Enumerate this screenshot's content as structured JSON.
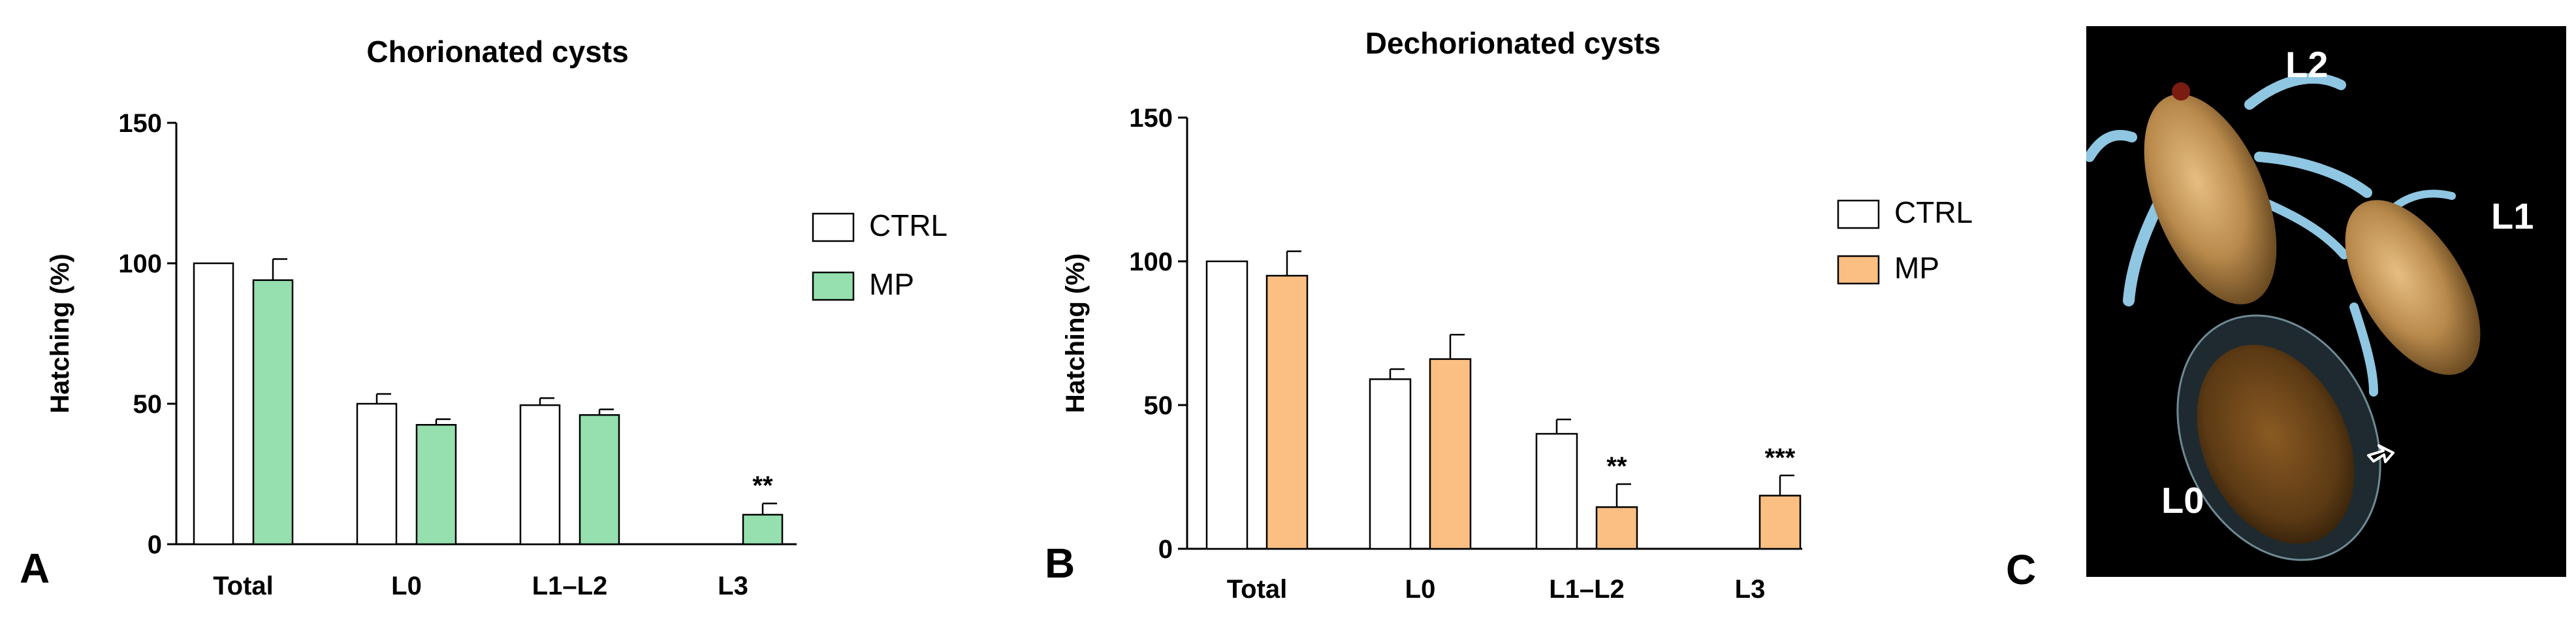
{
  "panel_letters": {
    "a": "A",
    "b": "B",
    "c": "C"
  },
  "chart_data": [
    {
      "type": "bar",
      "title": "Chorionated cysts",
      "xlabel": "",
      "ylabel": "Hatching (%)",
      "ylim": [
        0,
        150
      ],
      "yticks": [
        "0",
        "50",
        "100",
        "150"
      ],
      "categories": [
        "Total",
        "L0",
        "L1–L2",
        "L3"
      ],
      "series": [
        {
          "name": "CTRL",
          "color": "#ffffff",
          "values": [
            100,
            50,
            49.5,
            0
          ],
          "errors": [
            0,
            3.5,
            2.5,
            0
          ]
        },
        {
          "name": "MP",
          "color": "#95e0ae",
          "values": [
            94,
            42.5,
            46,
            10.5
          ],
          "errors": [
            7.5,
            2,
            2,
            4
          ]
        }
      ],
      "annotations": [
        {
          "category": "L3",
          "series": "MP",
          "text": "**"
        }
      ],
      "legend_position": "right"
    },
    {
      "type": "bar",
      "title": "Dechorionated cysts",
      "xlabel": "",
      "ylabel": "Hatching (%)",
      "ylim": [
        0,
        150
      ],
      "yticks": [
        "0",
        "50",
        "100",
        "150"
      ],
      "categories": [
        "Total",
        "L0",
        "L1–L2",
        "L3"
      ],
      "series": [
        {
          "name": "CTRL",
          "color": "#ffffff",
          "values": [
            100,
            59,
            40,
            0
          ],
          "errors": [
            0,
            3.5,
            5,
            0
          ]
        },
        {
          "name": "MP",
          "color": "#fbbf82",
          "values": [
            95,
            66,
            14.5,
            18.5
          ],
          "errors": [
            8.5,
            8.5,
            8,
            7
          ]
        }
      ],
      "annotations": [
        {
          "category": "L1–L2",
          "series": "MP",
          "text": "**"
        },
        {
          "category": "L3",
          "series": "MP",
          "text": "***"
        }
      ],
      "legend_position": "right"
    }
  ],
  "photo": {
    "labels": {
      "l2": "L2",
      "l1": "L1",
      "l0": "L0"
    },
    "background": "#000000",
    "larva_color": "#b98a4c",
    "appendage_color": "#8fc6e2"
  }
}
